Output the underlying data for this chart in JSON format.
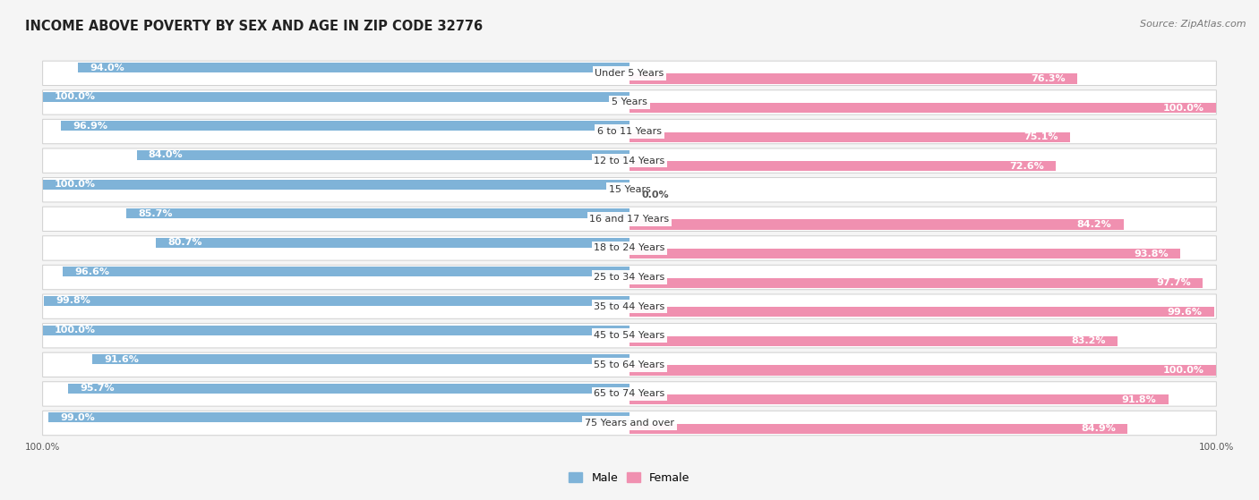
{
  "title": "INCOME ABOVE POVERTY BY SEX AND AGE IN ZIP CODE 32776",
  "source": "Source: ZipAtlas.com",
  "categories": [
    "Under 5 Years",
    "5 Years",
    "6 to 11 Years",
    "12 to 14 Years",
    "15 Years",
    "16 and 17 Years",
    "18 to 24 Years",
    "25 to 34 Years",
    "35 to 44 Years",
    "45 to 54 Years",
    "55 to 64 Years",
    "65 to 74 Years",
    "75 Years and over"
  ],
  "male_values": [
    94.0,
    100.0,
    96.9,
    84.0,
    100.0,
    85.7,
    80.7,
    96.6,
    99.8,
    100.0,
    91.6,
    95.7,
    99.0
  ],
  "female_values": [
    76.3,
    100.0,
    75.1,
    72.6,
    0.0,
    84.2,
    93.8,
    97.7,
    99.6,
    83.2,
    100.0,
    91.8,
    84.9
  ],
  "male_color": "#7fb3d8",
  "female_color": "#f090b0",
  "bg_color": "#f5f5f5",
  "row_bg_color": "#ebebeb",
  "title_fontsize": 10.5,
  "source_fontsize": 8,
  "label_fontsize": 8,
  "value_fontsize": 8,
  "legend_fontsize": 9,
  "max_value": 100.0
}
